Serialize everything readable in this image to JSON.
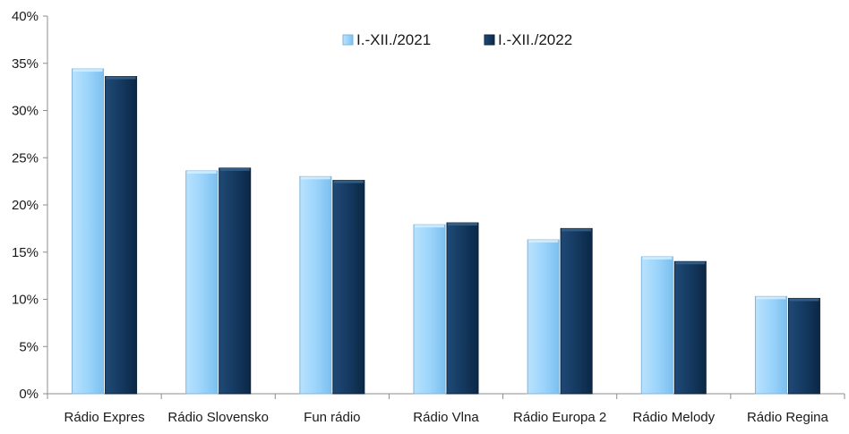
{
  "chart_data": {
    "type": "bar",
    "categories": [
      "Rádio Expres",
      "Rádio Slovensko",
      "Fun rádio",
      "Rádio Vlna",
      "Rádio Europa 2",
      "Rádio Melody",
      "Rádio Regina"
    ],
    "series": [
      {
        "name": "I.-XII./2021",
        "values": [
          34.4,
          23.6,
          23.0,
          17.9,
          16.3,
          14.5,
          10.3
        ]
      },
      {
        "name": "I.-XII./2022",
        "values": [
          33.6,
          23.9,
          22.6,
          18.1,
          17.5,
          14.0,
          10.1
        ]
      }
    ],
    "ylim": [
      0,
      40
    ],
    "yticks": [
      "0%",
      "5%",
      "10%",
      "15%",
      "20%",
      "25%",
      "30%",
      "35%",
      "40%"
    ],
    "legend_position": "top-center",
    "grid": false,
    "colors": [
      "#99d3fb",
      "#14385e"
    ]
  }
}
